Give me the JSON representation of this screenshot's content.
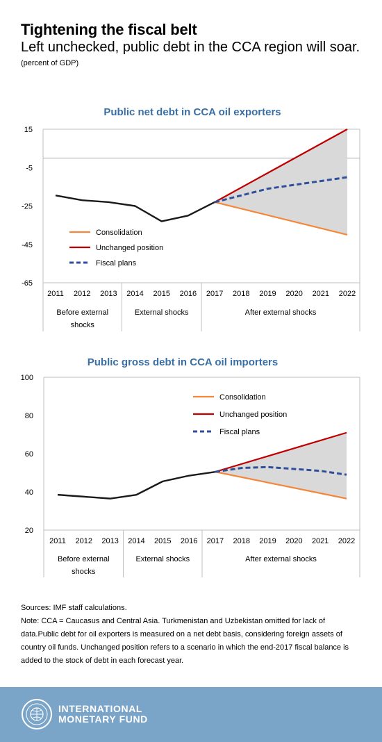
{
  "header": {
    "title": "Tightening the fiscal belt",
    "subtitle": "Left unchecked, public debt in the CCA region will soar.",
    "unit": "(percent of GDP)"
  },
  "chart_data": [
    {
      "type": "line",
      "title": "Public net debt in CCA oil exporters",
      "x": [
        2011,
        2012,
        2013,
        2014,
        2015,
        2016,
        2017,
        2018,
        2019,
        2020,
        2021,
        2022
      ],
      "ylim": [
        -65,
        15
      ],
      "yticks": [
        "15",
        "-5",
        "-25",
        "-45",
        "-65"
      ],
      "ytick_values": [
        15,
        -5,
        -25,
        -45,
        -65
      ],
      "grid": false,
      "reference_line": 0,
      "periods": [
        {
          "label": "Before external shocks",
          "from": 2011,
          "to": 2013
        },
        {
          "label": "External shocks",
          "from": 2014,
          "to": 2016
        },
        {
          "label": "After external shocks",
          "from": 2017,
          "to": 2022
        }
      ],
      "historical": [
        -19.5,
        -22,
        -23,
        -25,
        -33,
        -30,
        -23
      ],
      "series": [
        {
          "name": "Consolidation",
          "color": "#f4873b",
          "style": "solid",
          "x": [
            2017,
            2022
          ],
          "values": [
            -23,
            -40
          ]
        },
        {
          "name": "Unchanged position",
          "color": "#c00000",
          "style": "solid",
          "x": [
            2017,
            2022
          ],
          "values": [
            -23,
            15
          ]
        },
        {
          "name": "Fiscal plans",
          "color": "#2f4f9a",
          "style": "dashed",
          "x": [
            2017,
            2018,
            2019,
            2020,
            2021,
            2022
          ],
          "values": [
            -23,
            -19.5,
            -16,
            -14,
            -12,
            -10
          ]
        }
      ],
      "legend_position": "bottom-left",
      "shading": "between Consolidation and Unchanged position, 2017–2022"
    },
    {
      "type": "line",
      "title": "Public gross debt in CCA oil importers",
      "x": [
        2011,
        2012,
        2013,
        2014,
        2015,
        2016,
        2017,
        2018,
        2019,
        2020,
        2021,
        2022
      ],
      "ylim": [
        20,
        100
      ],
      "yticks": [
        "100",
        "80",
        "60",
        "40",
        "20"
      ],
      "ytick_values": [
        100,
        80,
        60,
        40,
        20
      ],
      "grid": false,
      "periods": [
        {
          "label": "Before external shocks",
          "from": 2011,
          "to": 2013
        },
        {
          "label": "External shocks",
          "from": 2014,
          "to": 2016
        },
        {
          "label": "After external shocks",
          "from": 2017,
          "to": 2022
        }
      ],
      "historical": [
        38.5,
        37.5,
        36.5,
        38.5,
        45.5,
        48.5,
        50.5
      ],
      "series": [
        {
          "name": "Consolidation",
          "color": "#f4873b",
          "style": "solid",
          "x": [
            2017,
            2022
          ],
          "values": [
            50.5,
            36.5
          ]
        },
        {
          "name": "Unchanged position",
          "color": "#c00000",
          "style": "solid",
          "x": [
            2017,
            2022
          ],
          "values": [
            50.5,
            71
          ]
        },
        {
          "name": "Fiscal plans",
          "color": "#2f4f9a",
          "style": "dashed",
          "x": [
            2017,
            2018,
            2019,
            2020,
            2021,
            2022
          ],
          "values": [
            50.5,
            52.5,
            53,
            52,
            51,
            49
          ]
        }
      ],
      "legend_position": "top-right",
      "shading": "between Consolidation and Unchanged position, 2017–2022"
    }
  ],
  "notes": {
    "source": "Sources: IMF staff calculations.",
    "note": "Note: CCA = Caucasus and Central Asia. Turkmenistan and Uzbekistan omitted for lack of data.Public debt for oil exporters is measured on a net debt basis, considering foreign assets of country oil funds. Unchanged position refers to a scenario in which the end-2017 fiscal balance is added to the stock of debt in each forecast year."
  },
  "footer": {
    "org_line1": "INTERNATIONAL",
    "org_line2": "MONETARY FUND",
    "colors": {
      "background": "#7aa4c8",
      "text": "#ffffff"
    }
  },
  "colors": {
    "title_blue": "#3a6fa5",
    "historical": "#1a1a1a",
    "band": "#d9d9d9"
  }
}
